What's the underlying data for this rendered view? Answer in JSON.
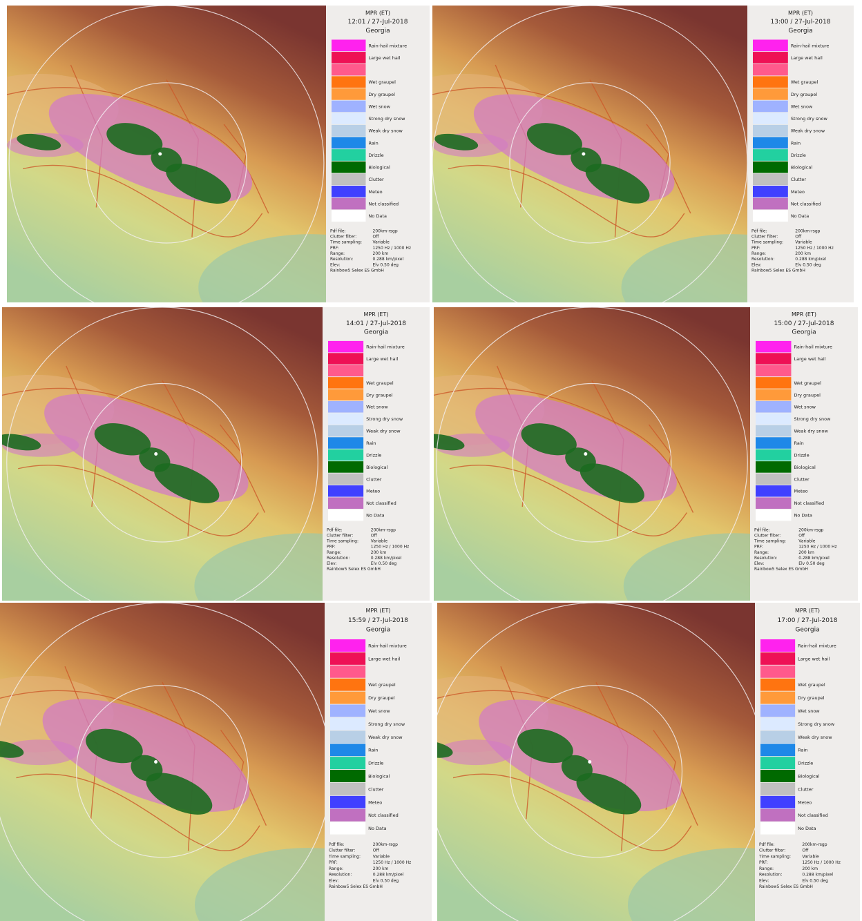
{
  "legend_header": {
    "title": "MPR (ET)",
    "region": "Georgia"
  },
  "panels": [
    {
      "time": "12:01 / 27-Jul-2018"
    },
    {
      "time": "13:00 / 27-Jul-2018"
    },
    {
      "time": "14:01 / 27-Jul-2018"
    },
    {
      "time": "15:00 / 27-Jul-2018"
    },
    {
      "time": "15:59 / 27-Jul-2018"
    },
    {
      "time": "17:00 / 27-Jul-2018"
    }
  ],
  "legend": {
    "items": [
      {
        "label": "Rain-hail mixture",
        "color": "#ff22ee"
      },
      {
        "label": "Large wet hail",
        "color": "#ee1155"
      },
      {
        "label": "",
        "color": "#ff5a8c"
      },
      {
        "label": "Wet graupel",
        "color": "#ff7410"
      },
      {
        "label": "Dry graupel",
        "color": "#ff9a3a"
      },
      {
        "label": "Wet snow",
        "color": "#9fb2ff"
      },
      {
        "label": "Strong dry snow",
        "color": "#dceaff"
      },
      {
        "label": "Weak dry snow",
        "color": "#b8cfe6"
      },
      {
        "label": "Rain",
        "color": "#1e88e8"
      },
      {
        "label": "Drizzle",
        "color": "#22d0a0"
      },
      {
        "label": "Biological",
        "color": "#006a00"
      },
      {
        "label": "Clutter",
        "color": "#c0c0c0"
      },
      {
        "label": "Meteo",
        "color": "#4040ff"
      },
      {
        "label": "Not classified",
        "color": "#c070c0"
      },
      {
        "label": "No Data",
        "color": "#ffffff"
      }
    ]
  },
  "settings": [
    [
      "Pdf file:",
      "200km-rsgp"
    ],
    [
      "Clutter filter:",
      "Off"
    ],
    [
      "Time sampling:",
      "Variable"
    ],
    [
      "PRF:",
      "1250 Hz / 1000 Hz"
    ],
    [
      "Range:",
      "200 km"
    ],
    [
      "Resolution:",
      "0.288 km/pixel"
    ],
    [
      "Elev:",
      "Elv 0.50 deg"
    ]
  ],
  "footer": "Rainbow5 Selex ES GmbH"
}
